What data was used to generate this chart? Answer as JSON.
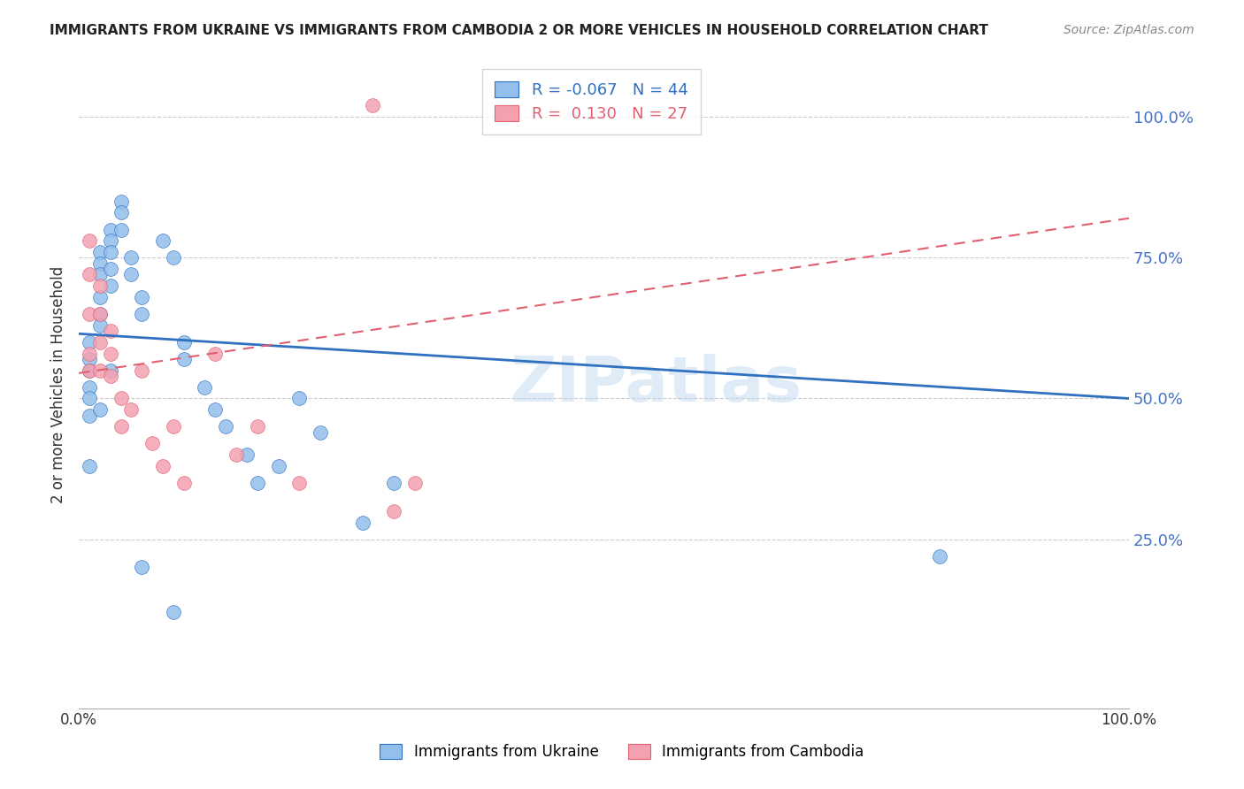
{
  "title": "IMMIGRANTS FROM UKRAINE VS IMMIGRANTS FROM CAMBODIA 2 OR MORE VEHICLES IN HOUSEHOLD CORRELATION CHART",
  "source": "Source: ZipAtlas.com",
  "ylabel": "2 or more Vehicles in Household",
  "y_tick_labels": [
    "100.0%",
    "75.0%",
    "50.0%",
    "25.0%"
  ],
  "y_tick_positions": [
    1.0,
    0.75,
    0.5,
    0.25
  ],
  "xlim": [
    0.0,
    1.0
  ],
  "ylim": [
    -0.05,
    1.1
  ],
  "legend_ukraine": "Immigrants from Ukraine",
  "legend_cambodia": "Immigrants from Cambodia",
  "R_ukraine": -0.067,
  "N_ukraine": 44,
  "R_cambodia": 0.13,
  "N_cambodia": 27,
  "color_ukraine": "#92BFEB",
  "color_cambodia": "#F4A0B0",
  "color_ukraine_line": "#3070C0",
  "color_cambodia_line": "#E06070",
  "watermark": "ZIPatlas",
  "ukraine_x": [
    0.01,
    0.01,
    0.01,
    0.01,
    0.01,
    0.01,
    0.02,
    0.02,
    0.02,
    0.02,
    0.02,
    0.02,
    0.03,
    0.03,
    0.03,
    0.03,
    0.03,
    0.04,
    0.04,
    0.04,
    0.05,
    0.05,
    0.06,
    0.06,
    0.08,
    0.09,
    0.1,
    0.1,
    0.12,
    0.13,
    0.14,
    0.16,
    0.17,
    0.19,
    0.21,
    0.23,
    0.27,
    0.3,
    0.82,
    0.01,
    0.02,
    0.03,
    0.06,
    0.09
  ],
  "ukraine_y": [
    0.6,
    0.57,
    0.55,
    0.52,
    0.5,
    0.47,
    0.76,
    0.74,
    0.72,
    0.68,
    0.65,
    0.63,
    0.8,
    0.78,
    0.76,
    0.73,
    0.7,
    0.85,
    0.83,
    0.8,
    0.75,
    0.72,
    0.68,
    0.65,
    0.78,
    0.75,
    0.6,
    0.57,
    0.52,
    0.48,
    0.45,
    0.4,
    0.35,
    0.38,
    0.5,
    0.44,
    0.28,
    0.35,
    0.22,
    0.38,
    0.48,
    0.55,
    0.2,
    0.12
  ],
  "cambodia_x": [
    0.01,
    0.01,
    0.01,
    0.01,
    0.01,
    0.02,
    0.02,
    0.02,
    0.02,
    0.03,
    0.03,
    0.03,
    0.04,
    0.04,
    0.05,
    0.06,
    0.07,
    0.08,
    0.09,
    0.1,
    0.13,
    0.15,
    0.17,
    0.21,
    0.28,
    0.3,
    0.32
  ],
  "cambodia_y": [
    0.78,
    0.72,
    0.65,
    0.58,
    0.55,
    0.7,
    0.65,
    0.6,
    0.55,
    0.62,
    0.58,
    0.54,
    0.5,
    0.45,
    0.48,
    0.55,
    0.42,
    0.38,
    0.45,
    0.35,
    0.58,
    0.4,
    0.45,
    0.35,
    1.02,
    0.3,
    0.35
  ],
  "trend_ukraine_x0": 0.0,
  "trend_ukraine_y0": 0.615,
  "trend_ukraine_x1": 1.0,
  "trend_ukraine_y1": 0.5,
  "trend_cambodia_x0": 0.0,
  "trend_cambodia_y0": 0.545,
  "trend_cambodia_x1": 1.0,
  "trend_cambodia_y1": 0.82
}
